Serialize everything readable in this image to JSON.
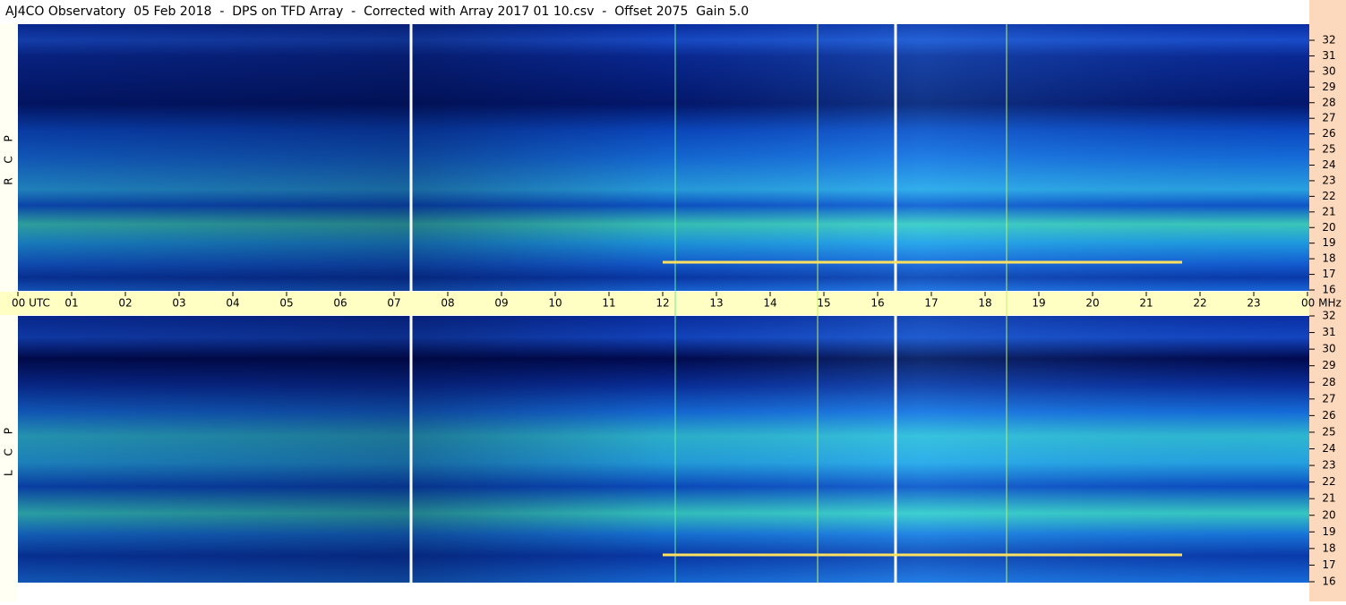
{
  "header": {
    "title": "AJ4CO Observatory  05 Feb 2018  -  DPS on TFD Array  -  Corrected with Array 2017 01 10.csv  -  Offset 2075  Gain 5.0"
  },
  "time_axis": {
    "labels": [
      "00 UTC",
      "01",
      "02",
      "03",
      "04",
      "05",
      "06",
      "07",
      "08",
      "09",
      "10",
      "11",
      "12",
      "13",
      "14",
      "15",
      "16",
      "17",
      "18",
      "19",
      "20",
      "21",
      "22",
      "23",
      "00 MHz"
    ]
  },
  "panels": [
    {
      "label": "R C P",
      "freq_labels": [
        "32",
        "31",
        "30",
        "29",
        "28",
        "27",
        "26",
        "25",
        "24",
        "23",
        "22",
        "21",
        "20",
        "19",
        "18",
        "17",
        "16"
      ]
    },
    {
      "label": "L C P",
      "freq_labels": [
        "32",
        "31",
        "30",
        "29",
        "28",
        "27",
        "26",
        "25",
        "24",
        "23",
        "22",
        "21",
        "20",
        "19",
        "18",
        "17",
        "16"
      ]
    }
  ]
}
